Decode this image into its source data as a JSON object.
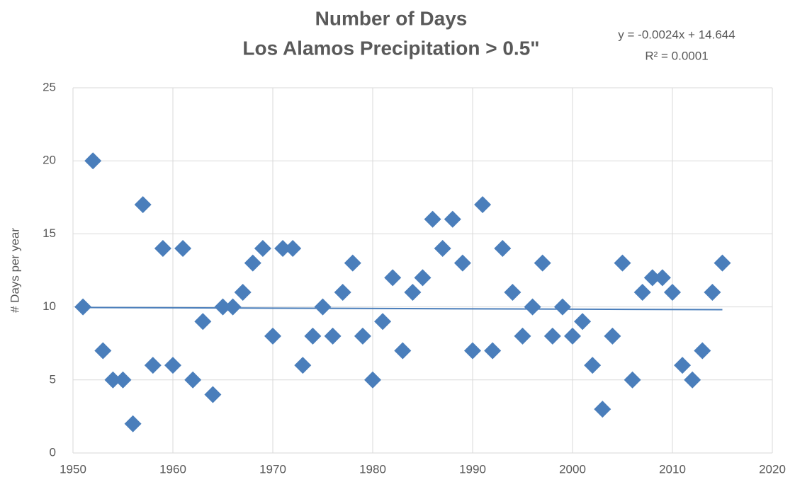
{
  "chart_data": {
    "type": "scatter",
    "title": "Number of Days",
    "subtitle": "Los Alamos Precipitation > 0.5\"",
    "annotations": [
      "y = -0.0024x + 14.644",
      "R² = 0.0001"
    ],
    "ylabel": "# Days per year",
    "series": [
      {
        "name": "Days",
        "color": "#4a7ebb",
        "x": [
          1951,
          1952,
          1953,
          1954,
          1955,
          1956,
          1957,
          1958,
          1959,
          1960,
          1961,
          1962,
          1963,
          1964,
          1965,
          1966,
          1967,
          1968,
          1969,
          1970,
          1971,
          1972,
          1973,
          1974,
          1975,
          1976,
          1977,
          1978,
          1979,
          1980,
          1981,
          1982,
          1983,
          1984,
          1985,
          1986,
          1987,
          1988,
          1989,
          1990,
          1991,
          1992,
          1993,
          1994,
          1995,
          1996,
          1997,
          1998,
          1999,
          2000,
          2001,
          2002,
          2003,
          2004,
          2005,
          2006,
          2007,
          2008,
          2009,
          2010,
          2011,
          2012,
          2013,
          2014,
          2015
        ],
        "values": [
          10,
          20,
          7,
          5,
          5,
          2,
          17,
          6,
          14,
          6,
          14,
          5,
          9,
          4,
          10,
          10,
          11,
          13,
          14,
          8,
          14,
          14,
          6,
          8,
          10,
          8,
          11,
          13,
          8,
          5,
          9,
          12,
          7,
          11,
          12,
          16,
          14,
          16,
          13,
          7,
          17,
          7,
          14,
          11,
          8,
          10,
          13,
          8,
          10,
          8,
          9,
          6,
          3,
          8,
          13,
          5,
          11,
          12,
          12,
          11,
          6,
          5,
          7,
          11,
          13
        ]
      }
    ],
    "trendline": {
      "color": "#4a7ebb",
      "x": [
        1951,
        2015
      ],
      "values": [
        9.96,
        9.81
      ]
    },
    "xlim": [
      1950,
      2020
    ],
    "xticks": [
      1950,
      1960,
      1970,
      1980,
      1990,
      2000,
      2010,
      2020
    ],
    "ylim": [
      0,
      25
    ],
    "yticks": [
      0,
      5,
      10,
      15,
      20,
      25
    ],
    "grid": true
  }
}
